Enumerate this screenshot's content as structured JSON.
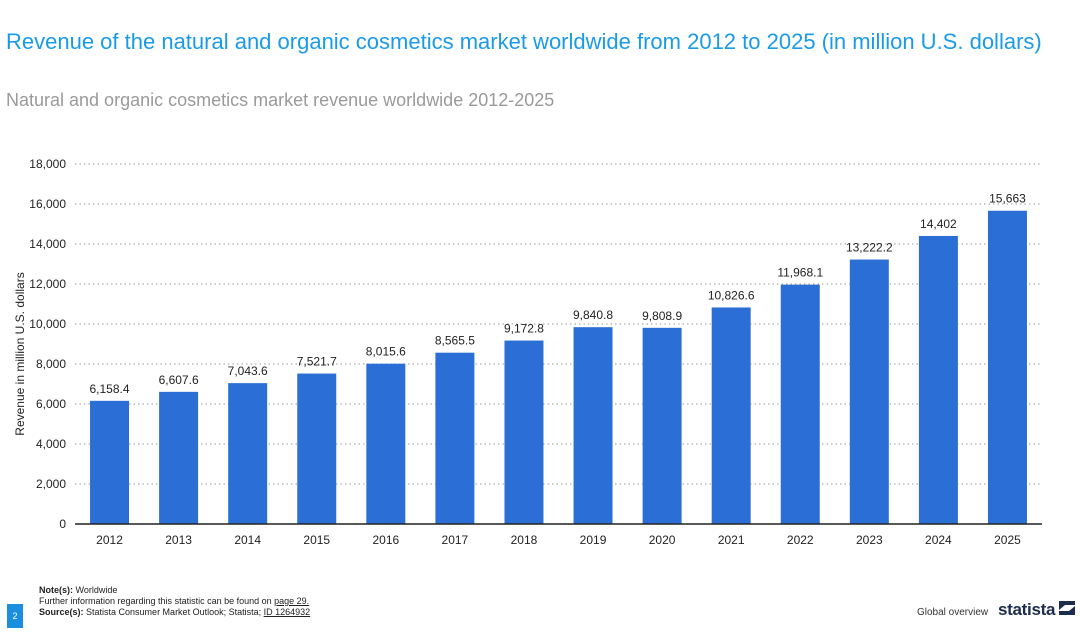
{
  "header": {
    "title": "Revenue of the natural and organic cosmetics market worldwide from 2012 to 2025 (in million U.S. dollars)",
    "subtitle": "Natural and organic cosmetics market revenue worldwide 2012-2025"
  },
  "chart_data": {
    "type": "bar",
    "title": "Revenue of the natural and organic cosmetics market worldwide from 2012 to 2025 (in million U.S. dollars)",
    "subtitle": "Natural and organic cosmetics market revenue worldwide 2012-2025",
    "xlabel": "",
    "ylabel": "Revenue in million U.S. dollars",
    "categories": [
      "2012",
      "2013",
      "2014",
      "2015",
      "2016",
      "2017",
      "2018",
      "2019",
      "2020",
      "2021",
      "2022",
      "2023",
      "2024",
      "2025"
    ],
    "values": [
      6158.4,
      6607.6,
      7043.6,
      7521.7,
      8015.6,
      8565.5,
      9172.8,
      9840.8,
      9808.9,
      10826.6,
      11968.1,
      13222.2,
      14402,
      15663
    ],
    "value_labels": [
      "6,158.4",
      "6,607.6",
      "7,043.6",
      "7,521.7",
      "8,015.6",
      "8,565.5",
      "9,172.8",
      "9,840.8",
      "9,808.9",
      "10,826.6",
      "11,968.1",
      "13,222.2",
      "14,402",
      "15,663"
    ],
    "ylim": [
      0,
      18000
    ],
    "yticks": [
      0,
      2000,
      4000,
      6000,
      8000,
      10000,
      12000,
      14000,
      16000,
      18000
    ],
    "ytick_labels": [
      "0",
      "2,000",
      "4,000",
      "6,000",
      "8,000",
      "10,000",
      "12,000",
      "14,000",
      "16,000",
      "18,000"
    ],
    "grid": "horizontal dotted",
    "legend": "none",
    "bar_color": "#2b6fd6"
  },
  "footer": {
    "note_label": "Note(s):",
    "note_text": "Worldwide",
    "info_text": "Further information regarding this statistic can be found on",
    "info_link": "page 29.",
    "source_label": "Source(s):",
    "source_text": "Statista Consumer Market Outlook; Statista;",
    "source_id": "ID 1264932",
    "page_number": "2",
    "section": "Global overview",
    "brand": "statista"
  },
  "colors": {
    "title": "#1a9be8",
    "subtitle": "#9a9a9a",
    "bar": "#2b6fd6",
    "page_badge": "#1a8fe0",
    "brand": "#1c2c4c"
  }
}
